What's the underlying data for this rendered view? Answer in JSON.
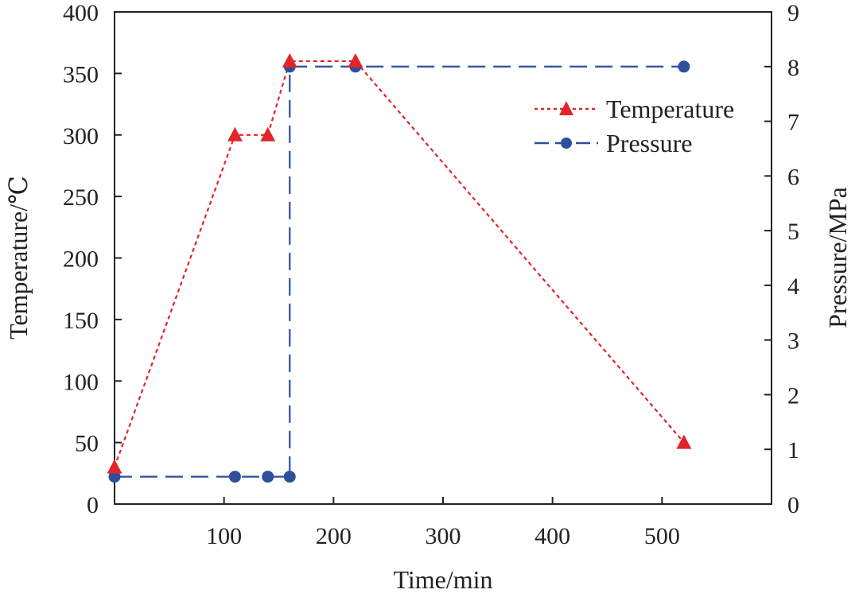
{
  "chart_data": {
    "type": "line",
    "title": "",
    "xlabel": "Time/min",
    "ylabel_left": "Temperature/℃",
    "ylabel_right": "Pressure/MPa",
    "xlim": [
      0,
      600
    ],
    "ylim_left": [
      0,
      400
    ],
    "ylim_right": [
      0,
      9
    ],
    "x_ticks": [
      100,
      200,
      300,
      400,
      500
    ],
    "y_ticks_left": [
      0,
      50,
      100,
      150,
      200,
      250,
      300,
      350,
      400
    ],
    "y_ticks_right": [
      0,
      1,
      2,
      3,
      4,
      5,
      6,
      7,
      8,
      9
    ],
    "grid": false,
    "legend_position": "upper-right",
    "series": [
      {
        "name": "Temperature",
        "axis": "left",
        "marker": "triangle",
        "line_style": "dotted",
        "color": "#e0262b",
        "x": [
          0,
          110,
          140,
          160,
          220,
          520
        ],
        "y": [
          30,
          300,
          300,
          360,
          360,
          50
        ]
      },
      {
        "name": "Pressure",
        "axis": "right",
        "marker": "circle",
        "line_style": "dashed",
        "color": "#2e4f9e",
        "x": [
          0,
          110,
          140,
          160,
          160,
          220,
          520
        ],
        "y": [
          0.5,
          0.5,
          0.5,
          0.5,
          8,
          8,
          8
        ],
        "marker_points": [
          [
            0,
            0.5
          ],
          [
            110,
            0.5
          ],
          [
            140,
            0.5
          ],
          [
            160,
            0.5
          ],
          [
            160,
            8
          ],
          [
            220,
            8
          ],
          [
            520,
            8
          ]
        ]
      }
    ]
  }
}
